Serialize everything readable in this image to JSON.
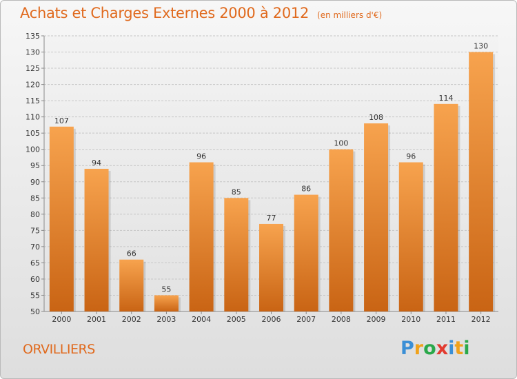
{
  "header": {
    "title": "Achats et Charges Externes 2000 à 2012",
    "unit": "(en milliers d'€)"
  },
  "footer": {
    "city": "ORVILLIERS",
    "logo_letters": [
      {
        "ch": "P",
        "color": "#3a8fd6"
      },
      {
        "ch": "r",
        "color": "#f0a21b"
      },
      {
        "ch": "o",
        "color": "#2aa84a"
      },
      {
        "ch": "x",
        "color": "#e23b30"
      },
      {
        "ch": "i",
        "color": "#3a8fd6"
      },
      {
        "ch": "t",
        "color": "#f0a21b"
      },
      {
        "ch": "i",
        "color": "#2aa84a"
      }
    ]
  },
  "colors": {
    "bar_top": "#f7a34e",
    "bar_bottom": "#c96414",
    "title": "#e06a1e"
  },
  "chart_data": {
    "type": "bar",
    "title": "Achats et Charges Externes 2000 à 2012",
    "subtitle": "(en milliers d'€)",
    "categories": [
      "2000",
      "2001",
      "2002",
      "2003",
      "2004",
      "2005",
      "2006",
      "2007",
      "2008",
      "2009",
      "2010",
      "2011",
      "2012"
    ],
    "values": [
      107,
      94,
      66,
      55,
      96,
      85,
      77,
      86,
      100,
      108,
      96,
      114,
      130
    ],
    "ylim": [
      50,
      135
    ],
    "yticks": [
      50,
      55,
      60,
      65,
      70,
      75,
      80,
      85,
      90,
      95,
      100,
      105,
      110,
      115,
      120,
      125,
      130,
      135
    ],
    "grid": true,
    "data_labels": true
  }
}
